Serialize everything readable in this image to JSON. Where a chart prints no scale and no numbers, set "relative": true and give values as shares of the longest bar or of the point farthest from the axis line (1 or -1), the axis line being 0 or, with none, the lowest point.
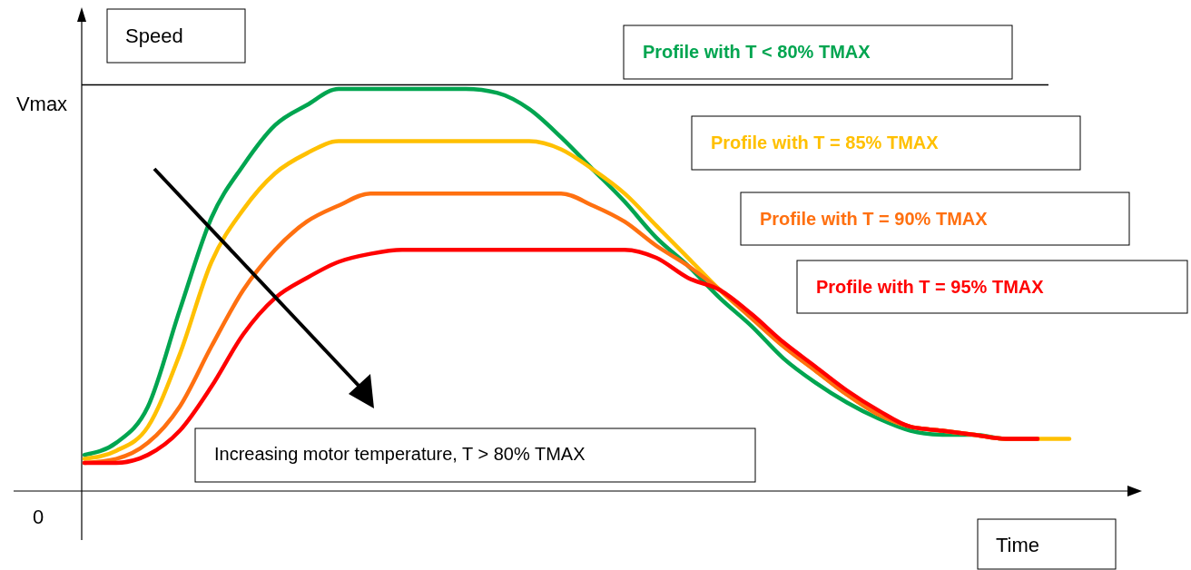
{
  "chart_data": {
    "type": "line",
    "ylabel": "Speed",
    "xlabel": "Time",
    "relative": true,
    "categories": [
      null,
      null,
      null,
      null,
      null,
      null,
      null,
      null,
      null,
      null,
      null,
      null,
      null,
      null,
      null,
      null,
      null,
      null,
      null,
      null,
      null,
      null,
      null,
      null,
      null,
      null,
      null,
      null,
      null,
      null,
      null,
      null
    ],
    "legend": "top right",
    "line_style": "solid",
    "ref_lines": [
      {
        "axis": "y",
        "value": 1.01,
        "label": "Vmax",
        "color": "#000000"
      }
    ],
    "annotations": [
      "Increasing motor temperature, T > 80% TMAX",
      "0"
    ],
    "series": [
      {
        "name": "Profile with T < 80% TMAX",
        "color": "#00a550",
        "values": [
          0.09,
          0.12,
          0.21,
          0.45,
          0.68,
          0.81,
          0.91,
          0.96,
          1,
          1,
          1,
          1,
          1,
          0.99,
          0.95,
          0.88,
          0.8,
          0.72,
          0.63,
          0.56,
          0.48,
          0.41,
          0.33,
          0.27,
          0.22,
          0.18,
          0.15,
          0.14,
          0.14,
          0.13,
          0.13,
          null
        ]
      },
      {
        "name": "Profile with T = 85% TMAX",
        "color": "#ffc000",
        "values": [
          0.08,
          0.1,
          0.16,
          0.34,
          0.57,
          0.7,
          0.79,
          0.84,
          0.87,
          0.87,
          0.87,
          0.87,
          0.87,
          0.87,
          0.87,
          0.85,
          0.8,
          0.74,
          0.66,
          0.58,
          0.5,
          0.43,
          0.36,
          0.3,
          0.24,
          0.19,
          0.16,
          0.15,
          0.14,
          0.13,
          0.13,
          0.13
        ]
      },
      {
        "name": "Profile with T = 90% TMAX",
        "color": "#ff7010",
        "values": [
          0.07,
          0.08,
          0.12,
          0.21,
          0.36,
          0.5,
          0.6,
          0.67,
          0.71,
          0.74,
          0.74,
          0.74,
          0.74,
          0.74,
          0.74,
          0.74,
          0.71,
          0.67,
          0.61,
          0.56,
          0.5,
          0.43,
          0.36,
          0.3,
          0.24,
          0.19,
          0.16,
          0.15,
          0.14,
          0.13,
          0.13,
          null
        ]
      },
      {
        "name": "Profile with T = 95% TMAX",
        "color": "#ff0000",
        "values": [
          0.07,
          0.07,
          0.09,
          0.15,
          0.26,
          0.39,
          0.48,
          0.53,
          0.57,
          0.59,
          0.6,
          0.6,
          0.6,
          0.6,
          0.6,
          0.6,
          0.6,
          0.6,
          0.58,
          0.53,
          0.5,
          0.44,
          0.37,
          0.31,
          0.25,
          0.2,
          0.16,
          0.15,
          0.14,
          0.13,
          0.13,
          null
        ]
      }
    ]
  }
}
